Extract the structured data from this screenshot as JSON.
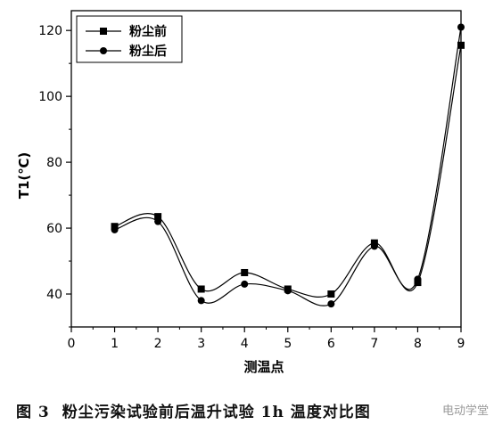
{
  "caption": {
    "number": "图 3",
    "text": "粉尘污染试验前后温升试验 1h 温度对比图"
  },
  "watermark": "电动学堂",
  "chart_data": {
    "type": "line",
    "title": "",
    "xlabel": "测温点",
    "ylabel": "T1(℃)",
    "x": [
      1,
      2,
      3,
      4,
      5,
      6,
      7,
      8,
      9
    ],
    "xlim": [
      0,
      9
    ],
    "ylim": [
      30,
      126
    ],
    "xticks": [
      "0",
      "1",
      "2",
      "3",
      "4",
      "5",
      "6",
      "7",
      "8",
      "9"
    ],
    "yticks": [
      "40",
      "60",
      "80",
      "100",
      "120"
    ],
    "ytick_values": [
      40,
      60,
      80,
      100,
      120
    ],
    "grid": false,
    "legend_position": "top-left",
    "series": [
      {
        "name": "粉尘前",
        "marker": "square",
        "color": "#000000",
        "values": [
          60.5,
          63.5,
          41.5,
          46.5,
          41.5,
          40.0,
          55.5,
          43.5,
          115.5
        ]
      },
      {
        "name": "粉尘后",
        "marker": "circle",
        "color": "#000000",
        "values": [
          59.5,
          62.0,
          38.0,
          43.0,
          41.0,
          37.0,
          54.5,
          44.5,
          121.0
        ]
      }
    ]
  }
}
